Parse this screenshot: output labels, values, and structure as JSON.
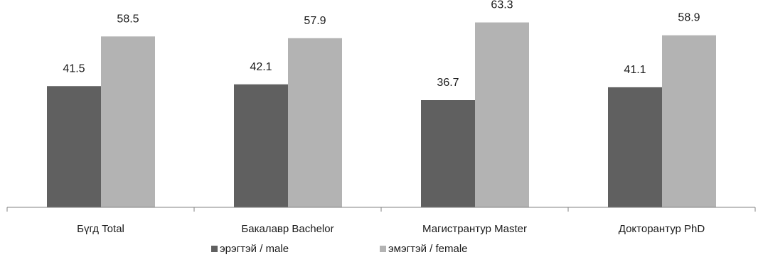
{
  "chart_data": {
    "type": "bar",
    "categories": [
      "Бүгд Total",
      "Бакалавр Bachelor",
      "Магистрантур Master",
      "Докторантур PhD"
    ],
    "series": [
      {
        "name": "эрэгтэй / male",
        "values": [
          41.5,
          42.1,
          36.7,
          41.1
        ],
        "color": "#606060"
      },
      {
        "name": "эмэгтэй / female",
        "values": [
          58.5,
          57.9,
          63.3,
          58.9
        ],
        "color": "#b3b3b3"
      }
    ],
    "ylim": [
      0,
      70
    ],
    "grid": false,
    "legend_position": "bottom"
  }
}
